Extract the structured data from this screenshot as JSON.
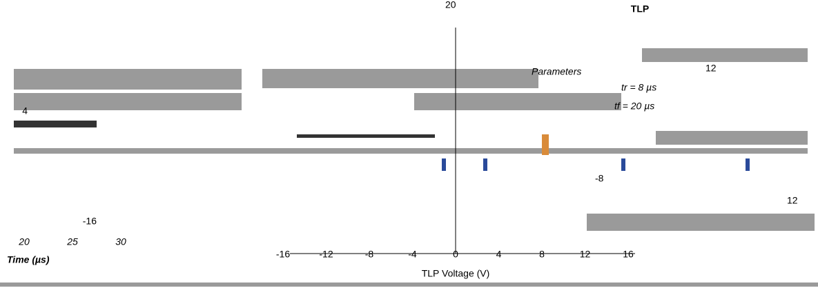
{
  "title": "TLP",
  "x_axis": {
    "label": "TLP Voltage (V)",
    "ticks": [
      -16,
      -12,
      -8,
      -4,
      0,
      4,
      8,
      12,
      16
    ]
  },
  "left_panel": {
    "x_label": "Time (µs)",
    "x_ticks": [
      20,
      25,
      30
    ],
    "y_ticks": [
      -16,
      4
    ]
  },
  "annotations": {
    "parameters": "Parameters",
    "rise": "tr = 8 µs",
    "fall": "tf = 20 µs",
    "right_tick_top": 12,
    "right_tick_bottom": 12,
    "mid_tick": -8,
    "top_tick": 20
  }
}
